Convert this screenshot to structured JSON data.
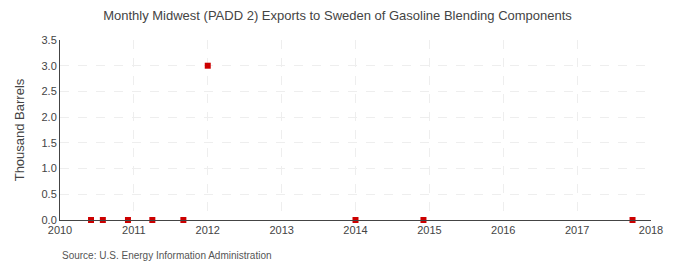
{
  "chart_data": {
    "type": "scatter",
    "title": "Monthly Midwest (PADD 2) Exports to Sweden of Gasoline Blending Components",
    "ylabel": "Thousand Barrels",
    "annotations": [
      "Source: U.S. Energy Information Administration"
    ],
    "x": [
      2010.42,
      2010.58,
      2010.92,
      2011.25,
      2011.67,
      2012.0,
      2014.0,
      2014.92,
      2017.75
    ],
    "values": [
      0.0,
      0.0,
      0.0,
      0.0,
      0.0,
      3.0,
      0.0,
      0.0,
      0.0
    ],
    "color": "#cc0000",
    "marker": "square",
    "xlim": [
      2010,
      2018
    ],
    "ylim": [
      0.0,
      3.5
    ],
    "xticks": [
      2010,
      2011,
      2012,
      2013,
      2014,
      2015,
      2016,
      2017,
      2018
    ],
    "yticks": [
      {
        "value": 0.0,
        "label": "0.0"
      },
      0.5,
      {
        "value": 1.0,
        "label": "1.0"
      },
      1.5,
      {
        "value": 2.0,
        "label": "2.0"
      },
      2.5,
      {
        "value": 3.0,
        "label": "3.0"
      },
      3.5
    ],
    "grid": true
  }
}
